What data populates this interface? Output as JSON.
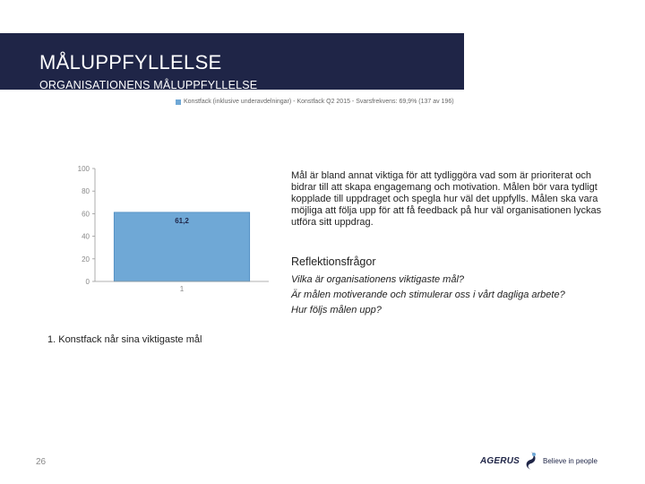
{
  "slide": {
    "title": "MÅLUPPFYLLELSE",
    "subtitle": "ORGANISATIONENS MÅLUPPFYLLELSE",
    "legend": "Konstfack (inklusive underavdelningar) - Konstfack Q2 2015 - Svarsfrekvens: 69,9% (137 av 196)",
    "body_text": "Mål är bland annat viktiga för att tydliggöra vad som är prioriterat och bidrar till att skapa engagemang och motivation. Målen bör vara tydligt kopplade till uppdraget och spegla hur väl det uppfylls. Målen ska vara möjliga att följa upp för att få feedback på hur väl organisationen lyckas utföra sitt uppdrag.",
    "reflection_heading": "Reflektionsfrågor",
    "questions": [
      "Vilka är organisationens viktigaste mål?",
      "Är målen motiverande och stimulerar oss i vårt dagliga arbete?",
      "Hur följs målen upp?"
    ],
    "chart_caption": "1. Konstfack når sina viktigaste mål",
    "page_number": "26",
    "logo": {
      "name": "AGERUS",
      "tagline": "Believe in people"
    }
  },
  "colors": {
    "header_bg": "#1f2547",
    "bar": "#6fa8d6",
    "bar_edge": "#4f8cc0"
  },
  "chart_data": {
    "type": "bar",
    "categories": [
      "1"
    ],
    "series": [
      {
        "name": "Konstfack (inklusive underavdelningar) - Konstfack Q2 2015 - Svarsfrekvens: 69,9% (137 av 196)",
        "values": [
          61.2
        ]
      }
    ],
    "data_labels": [
      "61,2"
    ],
    "ylim": [
      0,
      100
    ],
    "yticks": [
      0,
      20,
      40,
      60,
      80,
      100
    ],
    "ytick_labels": [
      "0",
      "20",
      "40",
      "60",
      "80",
      "100"
    ],
    "grid": false,
    "legend_position": "top"
  }
}
